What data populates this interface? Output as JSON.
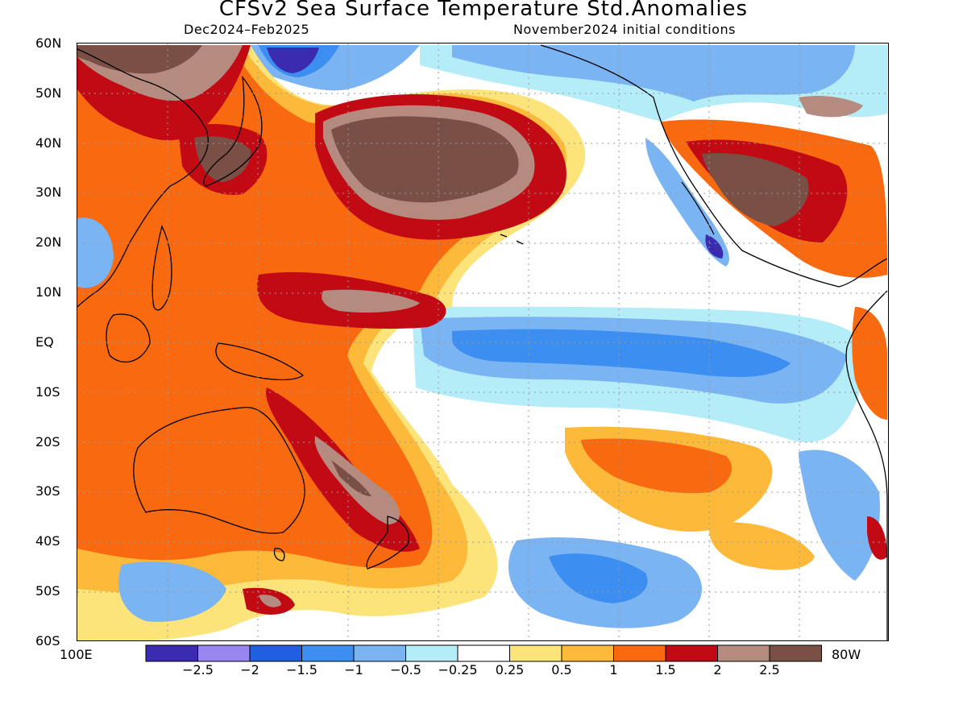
{
  "header": {
    "title": "CFSv2 Sea Surface Temperature Std.Anomalies",
    "period": "Dec2024–Feb2025",
    "init": "November2024 initial conditions"
  },
  "axes": {
    "lat_labels": [
      "60N",
      "50N",
      "40N",
      "30N",
      "20N",
      "10N",
      "EQ",
      "10S",
      "20S",
      "30S",
      "40S",
      "50S",
      "60S"
    ],
    "lon_left": "100E",
    "lon_right": "80W"
  },
  "colorbar": {
    "colors": [
      "#3b2bb0",
      "#9a86f0",
      "#1f5fe0",
      "#3c8ff0",
      "#7ab4f3",
      "#b4ecf8",
      "#ffffff",
      "#fce37a",
      "#fdb93a",
      "#f96a10",
      "#c10a14",
      "#b58b80",
      "#7a4f45"
    ],
    "labels": [
      "−2.5",
      "−2",
      "−1.5",
      "−1",
      "−0.5",
      "−0.25",
      "0.25",
      "0.5",
      "1",
      "1.5",
      "2",
      "2.5"
    ]
  },
  "map": {
    "lat_range": [
      -60,
      60
    ],
    "lon_range": [
      100,
      280
    ],
    "land_outline_color": "#000000"
  }
}
